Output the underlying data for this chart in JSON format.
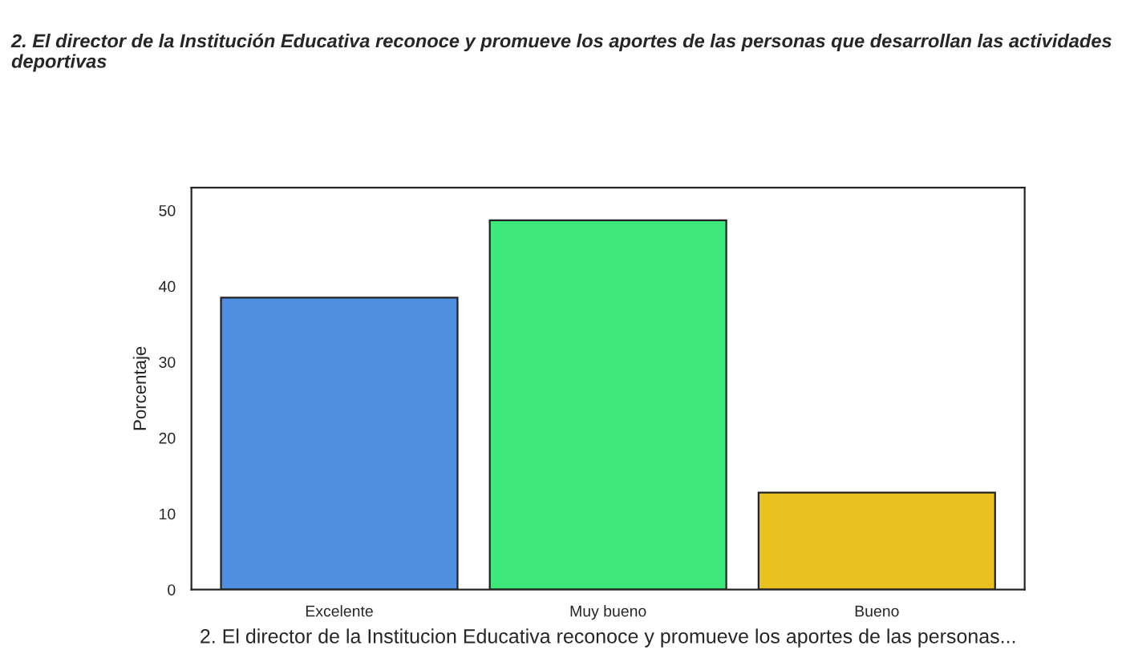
{
  "chart_data": {
    "type": "bar",
    "title": "2. El director de la Institución Educativa reconoce y promueve los aportes de las personas que desarrollan las actividades deportivas",
    "xlabel": "2. El director de la Institucion Educativa reconoce y promueve los aportes de las personas...",
    "ylabel": "Porcentaje",
    "categories": [
      "Excelente",
      "Muy bueno",
      "Bueno"
    ],
    "values": [
      38.5,
      48.7,
      12.8
    ],
    "colors": [
      "#4f8fe0",
      "#3ee87a",
      "#e8c020"
    ],
    "ylim": [
      0,
      53
    ],
    "yticks": [
      0,
      10,
      20,
      30,
      40,
      50
    ],
    "grid": false
  }
}
